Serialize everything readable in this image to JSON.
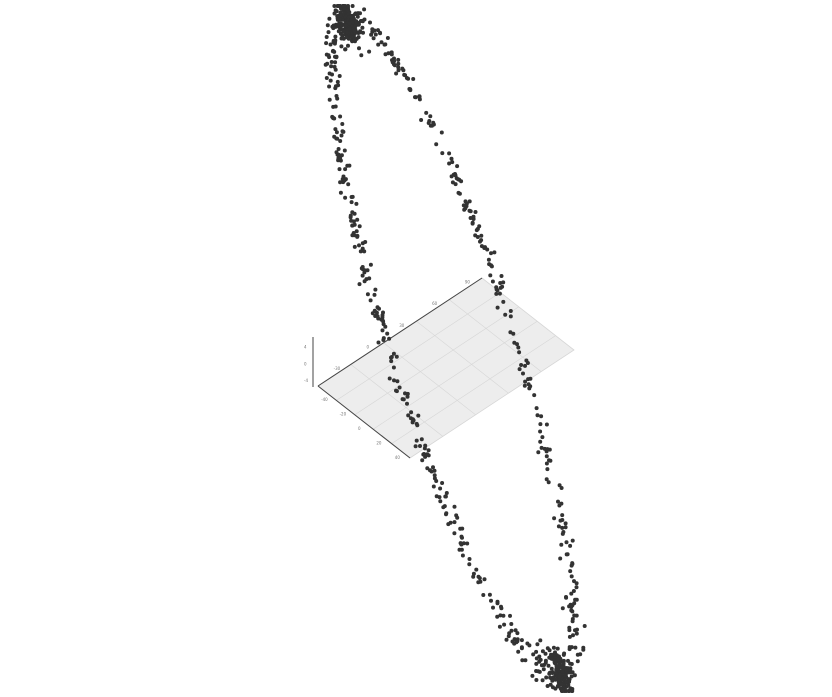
{
  "chart_data": {
    "type": "scatter",
    "projection": "3d",
    "title": "",
    "xlabel": "",
    "ylabel": "",
    "zlabel": "",
    "grid": true,
    "legend": "none",
    "colors": {
      "point": "#333333",
      "plane": "#ebebeb",
      "gridline": "#d6d6d6",
      "axis": "#444444",
      "tick_text": "#777777"
    },
    "axis_ticks": {
      "x": [
        "-40",
        "-20",
        "0",
        "20",
        "40"
      ],
      "y": [
        "-30",
        "0",
        "30",
        "60",
        "90"
      ],
      "z": [
        "-4",
        "0",
        "4"
      ]
    },
    "point_count": 900,
    "shape": "closed elliptical loop, dense clusters at both ends"
  }
}
